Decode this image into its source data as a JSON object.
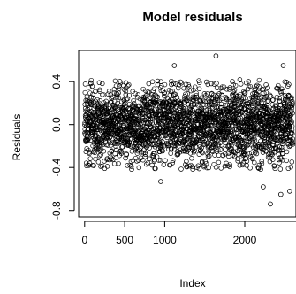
{
  "chart_data": {
    "type": "scatter",
    "title": "Model residuals",
    "xlabel": "Index",
    "ylabel": "Residuals",
    "x_ticks": [
      0,
      500,
      1000,
      2000
    ],
    "x_tick_labels": [
      "0",
      "500",
      "1000",
      "2000"
    ],
    "y_ticks": [
      -0.8,
      -0.4,
      0.0,
      0.4
    ],
    "y_tick_labels": [
      "-0.8",
      "-0.4",
      "0.0",
      "0.4"
    ],
    "xlim": [
      -75,
      2640
    ],
    "ylim": [
      -0.86,
      0.69
    ],
    "n_points": 2600,
    "marker": "open-circle",
    "color": "#000000",
    "series": [
      {
        "name": "",
        "summary": {
          "x_range": [
            1,
            2600
          ],
          "center": 0.0,
          "typical_spread": [
            -0.42,
            0.42
          ],
          "extremes": [
            {
              "x": 1120,
              "y": 0.55
            },
            {
              "x": 1640,
              "y": 0.64
            },
            {
              "x": 2480,
              "y": 0.55
            },
            {
              "x": 950,
              "y": -0.53
            },
            {
              "x": 2230,
              "y": -0.58
            },
            {
              "x": 2450,
              "y": -0.65
            },
            {
              "x": 2560,
              "y": -0.62
            },
            {
              "x": 2320,
              "y": -0.74
            }
          ]
        }
      }
    ]
  }
}
